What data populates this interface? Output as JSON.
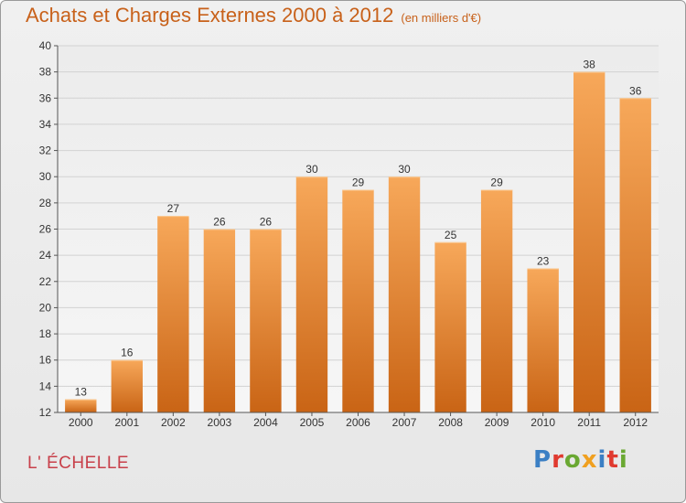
{
  "title": "Achats et Charges Externes 2000 à 2012",
  "subtitle": "(en milliers d'€)",
  "commune": "L' ÉCHELLE",
  "logo": {
    "letters": [
      "P",
      "r",
      "o",
      "x",
      "i",
      "t",
      "i"
    ]
  },
  "colors": {
    "title": "#c8611a",
    "commune": "#c8404a",
    "bar_top": "#f7a85a",
    "bar_bottom": "#c96415",
    "logo": [
      "#3b7fc4",
      "#e03a2f",
      "#6aa832",
      "#f0a020",
      "#3b7fc4",
      "#e03a2f",
      "#6aa832"
    ]
  },
  "chart_data": {
    "type": "bar",
    "categories": [
      "2000",
      "2001",
      "2002",
      "2003",
      "2004",
      "2005",
      "2006",
      "2007",
      "2008",
      "2009",
      "2010",
      "2011",
      "2012"
    ],
    "values": [
      13,
      16,
      27,
      26,
      26,
      30,
      29,
      30,
      25,
      29,
      23,
      38,
      36
    ],
    "ylim": [
      12,
      40
    ],
    "yticks": [
      12,
      14,
      16,
      18,
      20,
      22,
      24,
      26,
      28,
      30,
      32,
      34,
      36,
      38,
      40
    ],
    "grid": true,
    "data_labels": true
  }
}
